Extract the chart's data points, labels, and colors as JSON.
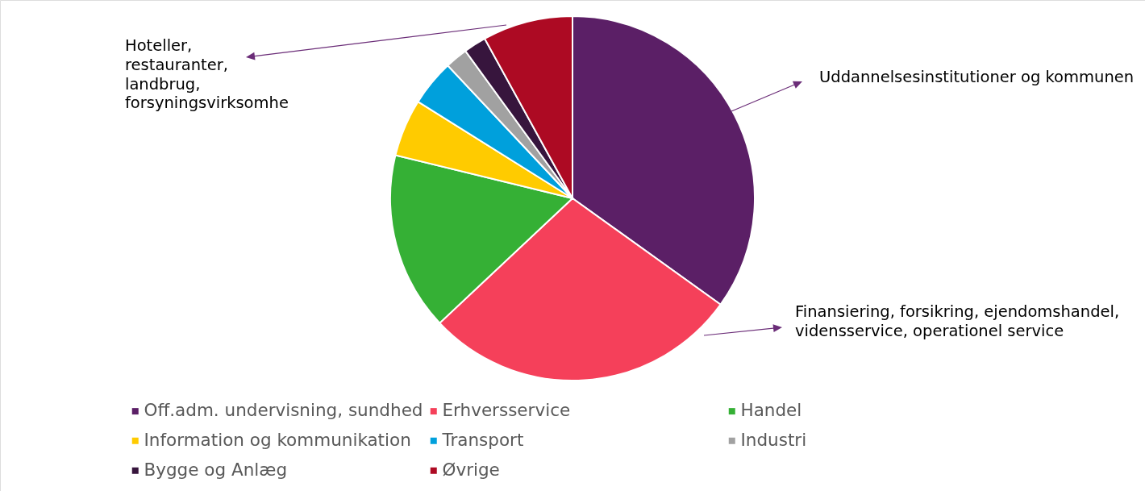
{
  "chart_data": {
    "type": "pie",
    "categories": [
      "Off.adm. undervisning, sundhed",
      "Erhversservice",
      "Handel",
      "Information og kommunikation",
      "Transport",
      "Industri",
      "Bygge og Anlæg",
      "Øvrige"
    ],
    "values": [
      34.9,
      28.1,
      15.8,
      5.1,
      4.1,
      2.0,
      2.0,
      8.0
    ],
    "colors": [
      "#5b1f66",
      "#f5405a",
      "#35b035",
      "#ffcb00",
      "#00a0dc",
      "#a1a1a1",
      "#37153d",
      "#ad0a23"
    ],
    "legend": "bottom",
    "annotations": [
      "Hoteller, restauranter, landbrug, forsyningsvirksomhe",
      "Uddannelsesinstitutioner og kommunen",
      "Finansiering, forsikring, ejendomshandel, vidensservice, operationel service"
    ]
  }
}
